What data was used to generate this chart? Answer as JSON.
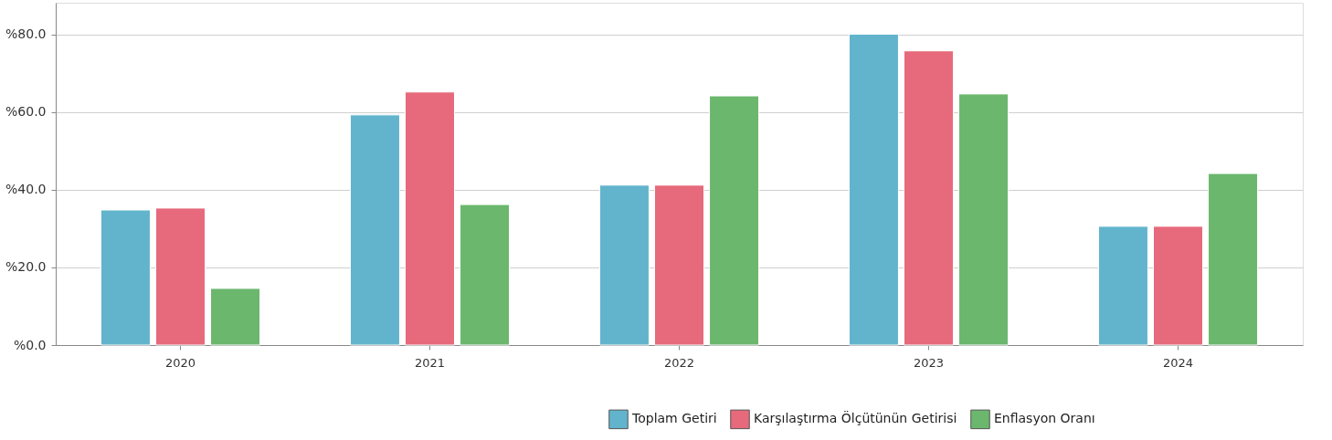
{
  "chart_data": {
    "type": "bar",
    "categories": [
      "2020",
      "2021",
      "2022",
      "2023",
      "2024"
    ],
    "series": [
      {
        "name": "Toplam Getiri",
        "color": "#62b4cc",
        "values": [
          34.8,
          59.3,
          41.2,
          80.1,
          30.6
        ]
      },
      {
        "name": "Karşılaştırma Ölçütünün Getirisi",
        "color": "#e66a7b",
        "values": [
          35.3,
          65.2,
          41.2,
          75.8,
          30.6
        ]
      },
      {
        "name": "Enflasyon Oranı",
        "color": "#6bb76d",
        "values": [
          14.6,
          36.2,
          64.2,
          64.7,
          44.2
        ]
      }
    ],
    "ylim": [
      0,
      88.2
    ],
    "yticks": [
      {
        "value": 0,
        "label": "%0.0"
      },
      {
        "value": 20,
        "label": "%20.0"
      },
      {
        "value": 40,
        "label": "%40.0"
      },
      {
        "value": 60,
        "label": "%60.0"
      },
      {
        "value": 80,
        "label": "%80.0"
      }
    ],
    "grid": "y",
    "legend": "bottom right"
  }
}
